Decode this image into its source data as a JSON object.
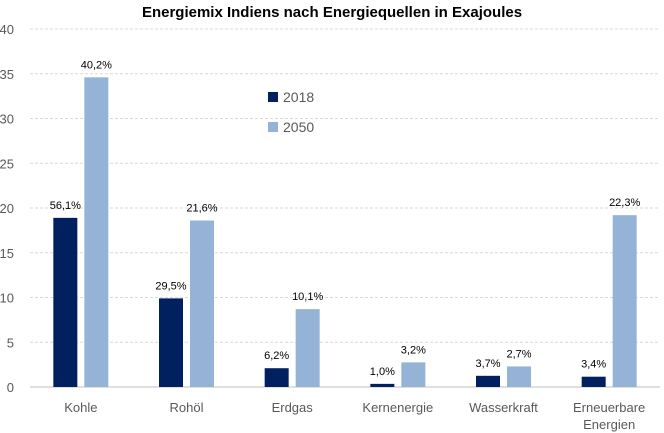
{
  "chart_data": {
    "type": "bar",
    "title": "Energiemix Indiens nach Energiequellen in Exajoules",
    "xlabel": "",
    "ylabel": "",
    "ylim": [
      0,
      40
    ],
    "yticks": [
      0,
      5,
      10,
      15,
      20,
      25,
      30,
      35,
      40
    ],
    "categories": [
      [
        "Kohle"
      ],
      [
        "Rohöl"
      ],
      [
        "Erdgas"
      ],
      [
        "Kernenergie"
      ],
      [
        "Wasserkraft"
      ],
      [
        "Erneuerbare",
        "Energien"
      ]
    ],
    "series": [
      {
        "name": "2018",
        "color": "#002060",
        "values": [
          18.9,
          9.9,
          2.1,
          0.35,
          1.25,
          1.15
        ],
        "labels": [
          "56,1%",
          "29,5%",
          "6,2%",
          "1,0%",
          "3,7%",
          "3,4%"
        ]
      },
      {
        "name": "2050",
        "color": "#95B3D7",
        "values": [
          34.6,
          18.6,
          8.7,
          2.75,
          2.3,
          19.2
        ],
        "labels": [
          "40,2%",
          "21,6%",
          "10,1%",
          "3,2%",
          "2,7%",
          "22,3%"
        ]
      }
    ],
    "legend_position": "top-center",
    "grid": true
  }
}
